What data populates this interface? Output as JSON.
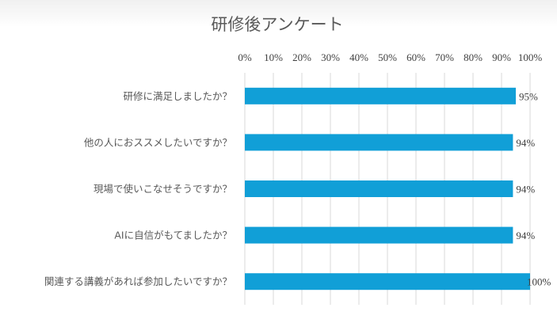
{
  "chart_data": {
    "type": "bar",
    "orientation": "horizontal",
    "title": "研修後アンケート",
    "xlabel": "",
    "ylabel": "",
    "xlim": [
      0,
      100
    ],
    "x_ticks": [
      "0%",
      "10%",
      "20%",
      "30%",
      "40%",
      "50%",
      "60%",
      "70%",
      "80%",
      "90%",
      "100%"
    ],
    "x_axis_position": "top",
    "grid": true,
    "legend": "none",
    "categories": [
      "研修に満足しましたか？",
      "他の人におススメしたいですか？",
      "現場で使いこなせそうですか？",
      "AIに自信がもてましたか？",
      "関連する講義があれば参加したいですか？"
    ],
    "values": [
      95,
      94,
      94,
      94,
      100
    ],
    "value_labels": [
      "95%",
      "94%",
      "94%",
      "94%",
      "100%"
    ],
    "bar_color": "#119FD7"
  }
}
